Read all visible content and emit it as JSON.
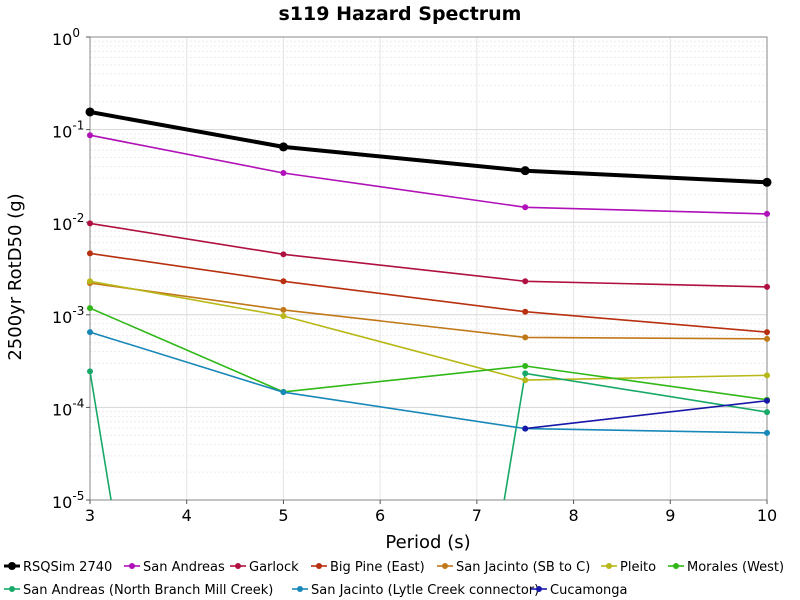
{
  "chart_data": {
    "type": "line",
    "title": "s119 Hazard Spectrum",
    "xlabel": "Period (s)",
    "ylabel": "2500yr RotD50 (g)",
    "xlim": [
      3,
      10
    ],
    "ylim": [
      1e-05,
      1
    ],
    "yscale": "log",
    "x_ticks": [
      "3",
      "4",
      "5",
      "6",
      "7",
      "8",
      "9",
      "10"
    ],
    "y_ticks": [
      {
        "base": "10",
        "exp": "0"
      },
      {
        "base": "10",
        "exp": "-1"
      },
      {
        "base": "10",
        "exp": "-2"
      },
      {
        "base": "10",
        "exp": "-3"
      },
      {
        "base": "10",
        "exp": "-4"
      },
      {
        "base": "10",
        "exp": "-5"
      }
    ],
    "grid": true,
    "legend_position": "bottom",
    "series": [
      {
        "name": "RSQSim 2740",
        "color": "#000000",
        "bold": true,
        "x": [
          3,
          5,
          7.5,
          10
        ],
        "y": [
          0.155,
          0.065,
          0.036,
          0.027
        ]
      },
      {
        "name": "San Andreas",
        "color": "#b010b8",
        "x": [
          3,
          5,
          7.5,
          10
        ],
        "y": [
          0.087,
          0.034,
          0.0145,
          0.0123
        ]
      },
      {
        "name": "Garlock",
        "color": "#b01040",
        "x": [
          3,
          5,
          7.5,
          10
        ],
        "y": [
          0.0097,
          0.0045,
          0.0023,
          0.002
        ]
      },
      {
        "name": "Big Pine (East)",
        "color": "#b83010",
        "x": [
          3,
          5,
          7.5,
          10
        ],
        "y": [
          0.0046,
          0.0023,
          0.00108,
          0.00065
        ]
      },
      {
        "name": "San Jacinto (SB to C)",
        "color": "#c07818",
        "x": [
          3,
          5,
          7.5,
          10
        ],
        "y": [
          0.0022,
          0.00113,
          0.00057,
          0.00055
        ]
      },
      {
        "name": "Pleito",
        "color": "#b8b818",
        "x": [
          3,
          5,
          7.5,
          10
        ],
        "y": [
          0.0023,
          0.00097,
          0.000197,
          0.000222
        ]
      },
      {
        "name": "Morales (West)",
        "color": "#30b818",
        "x": [
          3,
          5,
          7.5,
          10
        ],
        "y": [
          0.00118,
          0.000147,
          0.00028,
          0.000121
        ]
      },
      {
        "name": "San Andreas (North Branch Mill Creek)",
        "color": "#18a868",
        "x": [
          3,
          3.3,
          7.2,
          7.5,
          10
        ],
        "y": [
          0.000245,
          3e-06,
          3e-06,
          0.000233,
          8.9e-05
        ]
      },
      {
        "name": "San Jacinto (Lytle Creek connector)",
        "color": "#1888b8",
        "x": [
          3,
          5,
          7.5,
          10
        ],
        "y": [
          0.00065,
          0.000146,
          5.9e-05,
          5.3e-05
        ]
      },
      {
        "name": "Cucamonga",
        "color": "#1818a8",
        "x": [
          7.5,
          10
        ],
        "y": [
          5.9e-05,
          0.000118
        ]
      }
    ]
  }
}
